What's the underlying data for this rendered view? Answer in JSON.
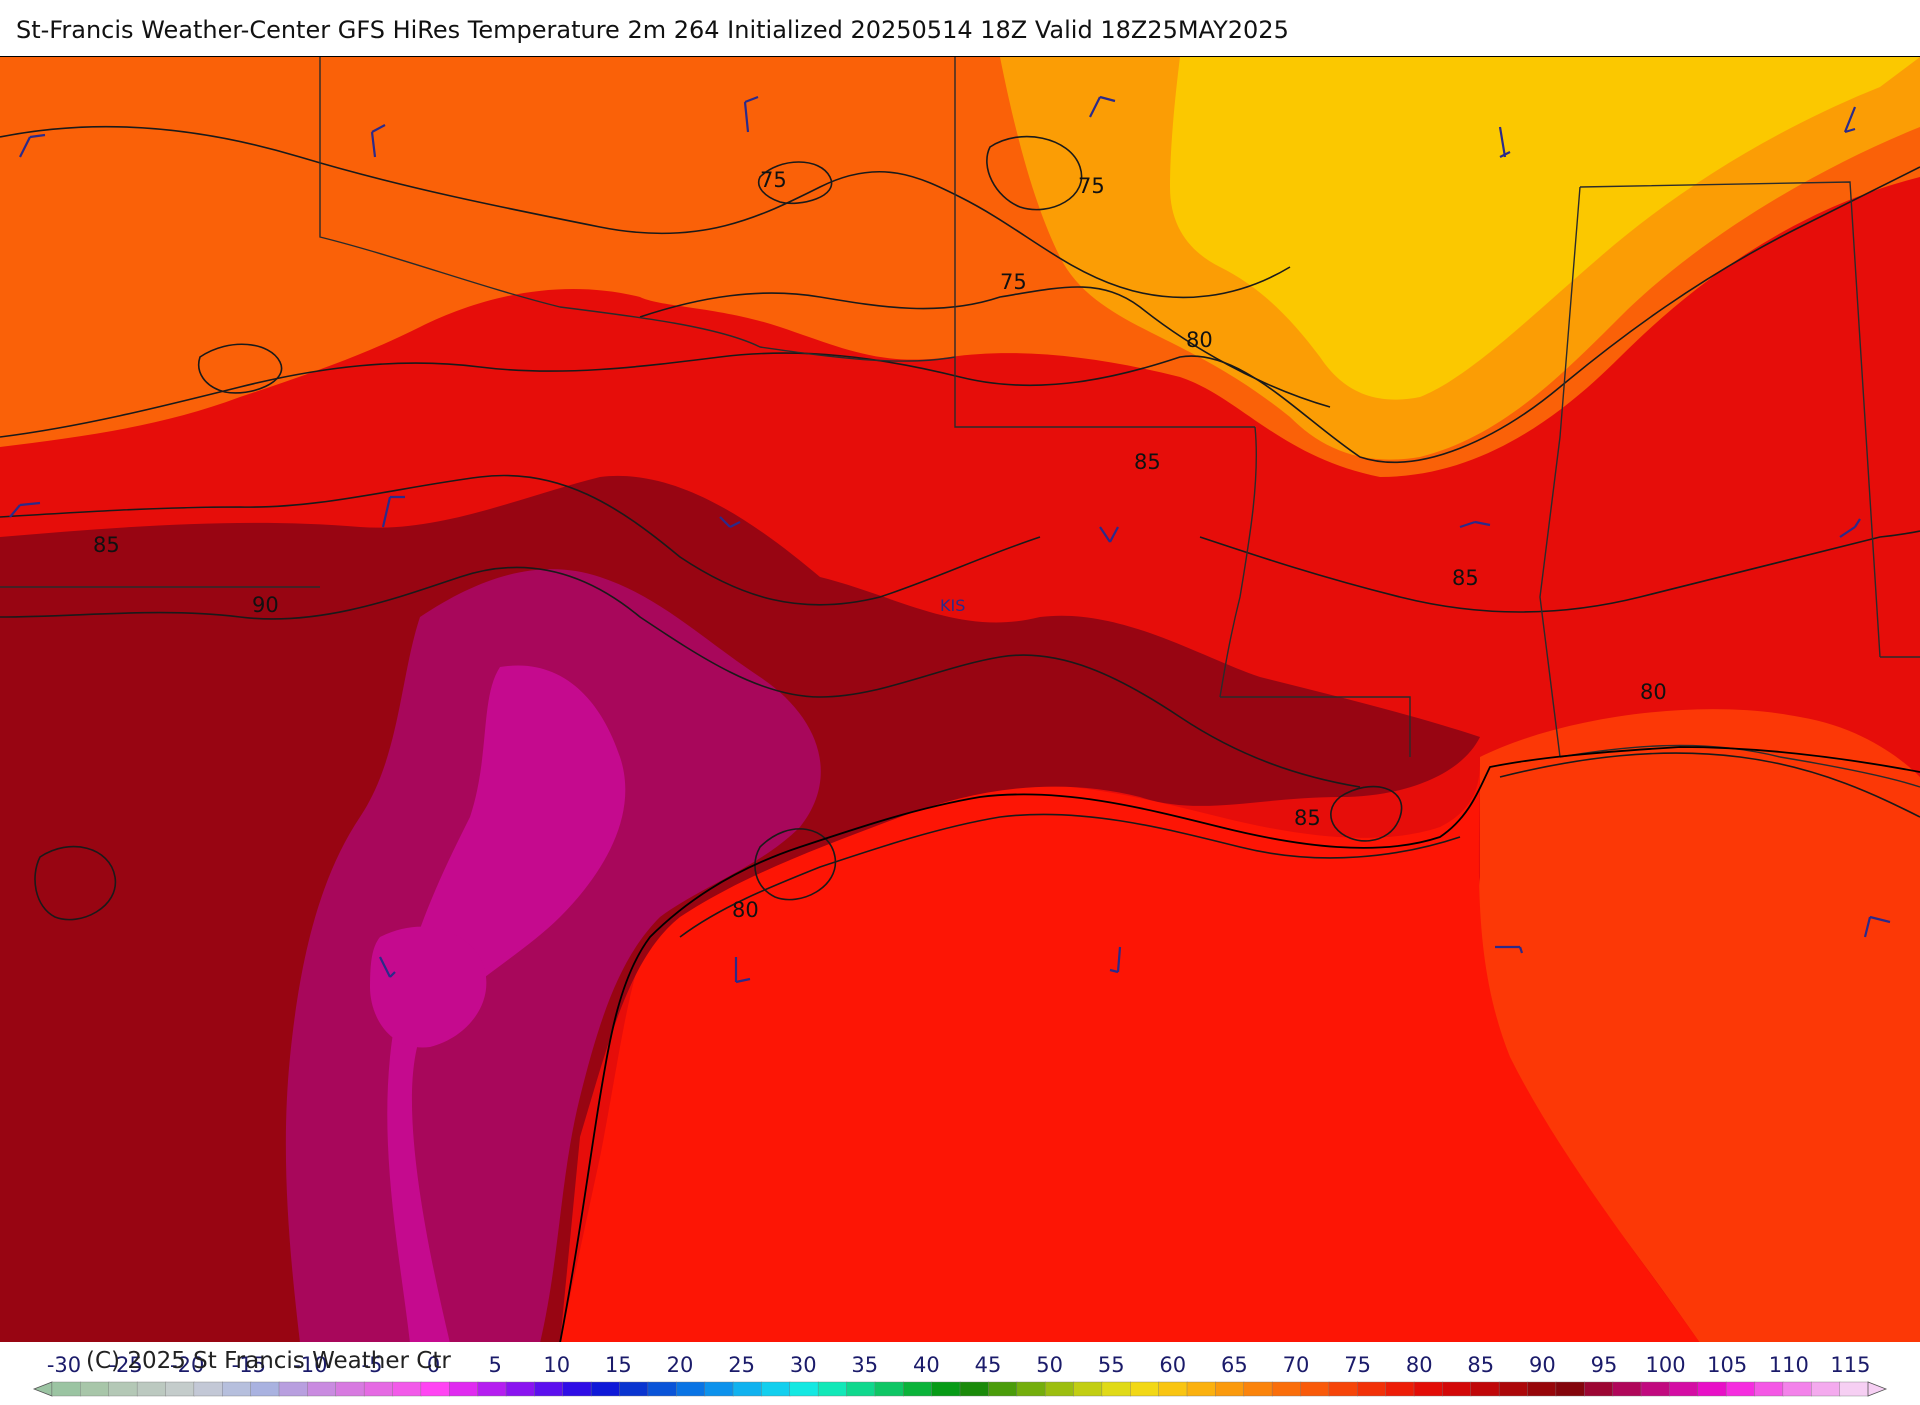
{
  "title": "St-Francis Weather-Center GFS HiRes Temperature 2m  264 Initialized 20250514 18Z Valid 18Z25MAY2025",
  "copyright": "(C) 2025 St Francis Weather Ctr",
  "contour_labels": [
    "75",
    "75",
    "75",
    "80",
    "85",
    "85",
    "90",
    "85",
    "80",
    "85",
    "80"
  ],
  "place_label": "KIS",
  "colorbar": {
    "ticks": [
      "-30",
      "-25",
      "-20",
      "-15",
      "-10",
      "-5",
      "0",
      "5",
      "10",
      "15",
      "20",
      "25",
      "30",
      "35",
      "40",
      "45",
      "50",
      "55",
      "60",
      "65",
      "70",
      "75",
      "80",
      "85",
      "90",
      "95",
      "100",
      "105",
      "110",
      "115"
    ],
    "colors": [
      "#9bc4a2",
      "#a8c6a9",
      "#b4c8b6",
      "#bcc9c0",
      "#c4cccb",
      "#c3c8d6",
      "#b6bfdd",
      "#a9b2e0",
      "#b89fdf",
      "#c98be0",
      "#d77ae0",
      "#e56ae3",
      "#f25ae9",
      "#ff45f3",
      "#e02bf0",
      "#b51ef0",
      "#8a14f0",
      "#5c10ee",
      "#2f0ee6",
      "#0f19d8",
      "#0a35d0",
      "#0a54d8",
      "#0a74e4",
      "#0d92ec",
      "#11b2ef",
      "#13cfee",
      "#14e8e2",
      "#12e8b8",
      "#10d88d",
      "#0fc665",
      "#0bb33a",
      "#079b17",
      "#1a8a0a",
      "#4a9c0b",
      "#74ae0d",
      "#9cbe10",
      "#c2ce13",
      "#e0da18",
      "#f2d816",
      "#f9c512",
      "#fbb10f",
      "#fb9a0d",
      "#fb840c",
      "#fa6e0b",
      "#f95a0a",
      "#f64509",
      "#f23108",
      "#ed1d07",
      "#e30d07",
      "#d30808",
      "#c00709",
      "#ac0709",
      "#97060a",
      "#84050c",
      "#9c0633",
      "#b0075a",
      "#c10a7f",
      "#d40da4",
      "#e810c7",
      "#f52ddf",
      "#f458e5",
      "#f382ea",
      "#f4aaee",
      "#f6cff3"
    ],
    "min_label": "-30",
    "max_label": "115"
  },
  "colors": {
    "gulf": "#fd1505",
    "gulf_east": "#fc3806",
    "land_base": "#e60d0a",
    "hot_dark": "#980512",
    "hot_purple": "#a8075b",
    "hot_magenta": "#c50a8e",
    "warm_orange": "#fa6108",
    "cool_yellow": "#fbc800",
    "cool_amber": "#fb9d05",
    "contour_line": "#1a1a1a",
    "border_line": "#2b2b2b",
    "wind_barb": "#2b2a8a"
  },
  "wind_barb_icon": "wind-barb-icon"
}
